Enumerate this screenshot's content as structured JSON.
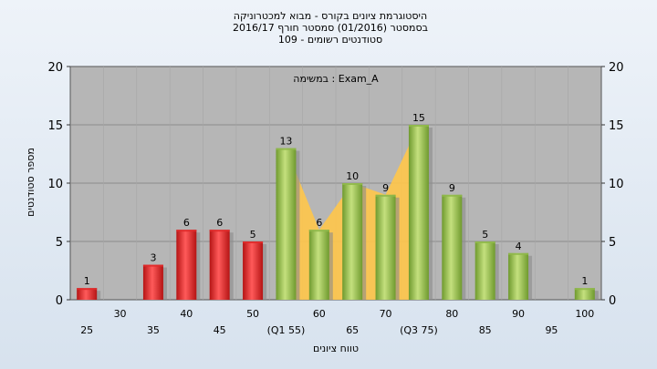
{
  "chart_data": {
    "type": "bar",
    "title_lines": [
      "היסטוגרמת ציונים בקורס - מבוא למכטרוניקה",
      "בסמסטר  (01/2016)  סמסטר חורף 2016/17",
      "סטודנטים רשומים - 109"
    ],
    "annotation": "במשימה : Exam_A",
    "xlabel": "טווח ציונים",
    "ylabel": "מספר סטודנטים",
    "ylim": [
      0,
      20
    ],
    "y_ticks": [
      "0",
      "5",
      "10",
      "15",
      "20"
    ],
    "grid": true,
    "categories": [
      "25",
      "30",
      "35",
      "40",
      "45",
      "50",
      "55",
      "60",
      "65",
      "70",
      "75",
      "80",
      "85",
      "90",
      "95",
      "100"
    ],
    "x_tick_labels": [
      "25",
      "30",
      "35",
      "40",
      "45",
      "50",
      "(Q1 55)",
      "60",
      "65",
      "70",
      "(Q3 75)",
      "80",
      "85",
      "90",
      "95",
      "100"
    ],
    "values": [
      1,
      0,
      3,
      6,
      6,
      5,
      13,
      6,
      10,
      9,
      15,
      9,
      5,
      4,
      0,
      1
    ],
    "value_labels": [
      "1",
      "",
      "3",
      "6",
      "6",
      "5",
      "13",
      "6",
      "10",
      "9",
      "15",
      "9",
      "5",
      "4",
      "",
      "1"
    ],
    "bar_colors": [
      "#e02b2b",
      "#e02b2b",
      "#e02b2b",
      "#e02b2b",
      "#e02b2b",
      "#e02b2b",
      "#8fb84a",
      "#8fb84a",
      "#8fb84a",
      "#8fb84a",
      "#8fb84a",
      "#8fb84a",
      "#8fb84a",
      "#8fb84a",
      "#8fb84a",
      "#8fb84a"
    ],
    "colors": {
      "failing_bar": "#e02b2b",
      "passing_bar": "#8fb84a",
      "interquartile_area": "#ffc64a",
      "plot_background": "#b6b6b6"
    }
  }
}
